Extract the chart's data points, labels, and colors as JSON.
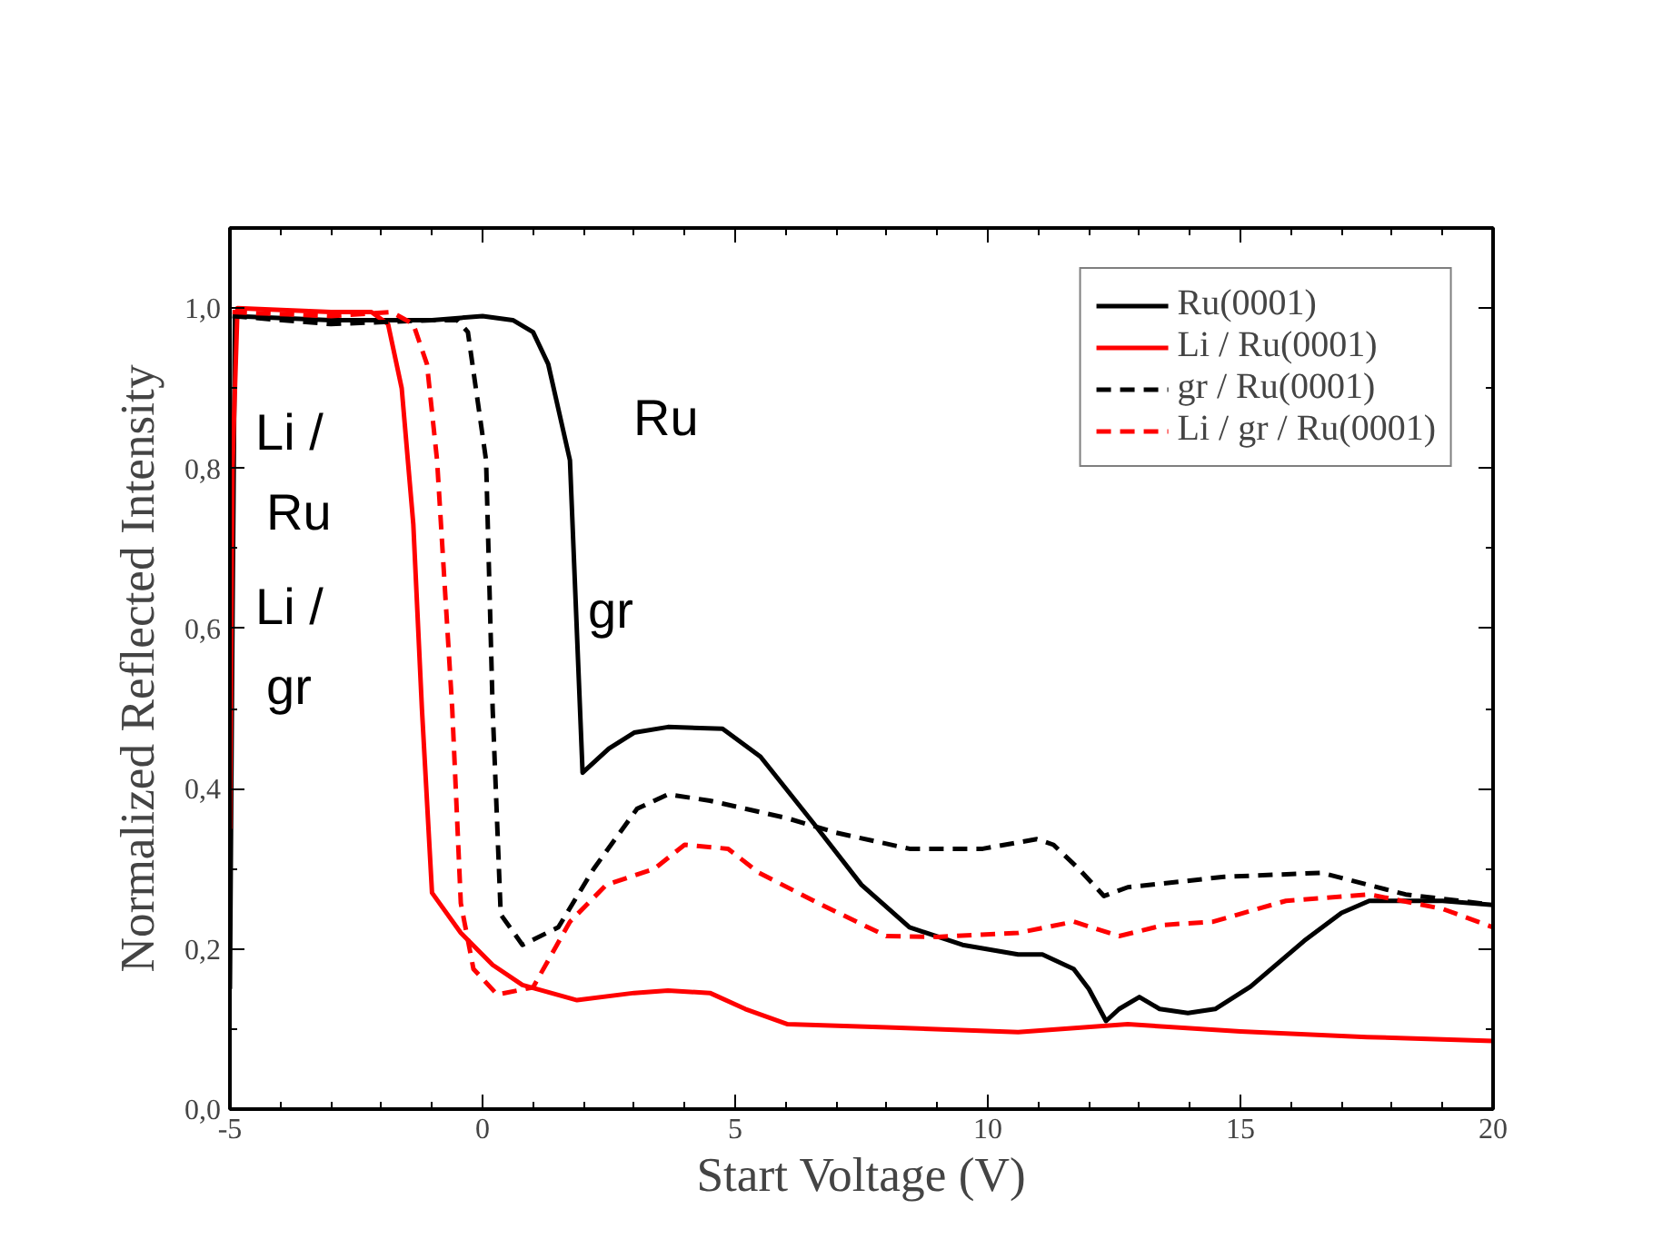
{
  "chart_data": {
    "type": "line",
    "xlabel": "Start Voltage (V)",
    "ylabel": "Normalized Reflected Intensity",
    "xlim": [
      -5,
      20
    ],
    "ylim": [
      0,
      1.1
    ],
    "xticks": [
      -5,
      0,
      5,
      10,
      15,
      20
    ],
    "yticks": [
      {
        "value": 0,
        "label": "0,0"
      },
      {
        "value": 0.2,
        "label": "0,2"
      },
      {
        "value": 0.4,
        "label": "0,4"
      },
      {
        "value": 0.6,
        "label": "0,6"
      },
      {
        "value": 0.8,
        "label": "0,8"
      },
      {
        "value": 1.0,
        "label": "1,0"
      }
    ],
    "grid": false,
    "legend": "top right",
    "marker": "none",
    "series": [
      {
        "name": "Ru(0001)",
        "color": "#000000",
        "line_style": "solid",
        "x": [
          -5,
          -4.95,
          -4.9,
          -3,
          -1,
          0,
          0.6,
          1.0,
          1.3,
          1.73,
          1.98,
          2.5,
          3.0,
          3.67,
          4.75,
          5.5,
          6.55,
          7.5,
          8.45,
          9.5,
          10.6,
          11.08,
          11.7,
          12.0,
          12.34,
          12.6,
          13.0,
          13.4,
          13.96,
          14.5,
          15.2,
          16.26,
          17.0,
          17.55,
          19.0,
          20
        ],
        "values": [
          0.15,
          0.6,
          0.99,
          0.985,
          0.985,
          0.99,
          0.985,
          0.97,
          0.93,
          0.81,
          0.42,
          0.45,
          0.47,
          0.477,
          0.475,
          0.44,
          0.357,
          0.28,
          0.227,
          0.205,
          0.193,
          0.193,
          0.175,
          0.15,
          0.11,
          0.125,
          0.14,
          0.125,
          0.12,
          0.125,
          0.153,
          0.21,
          0.245,
          0.26,
          0.26,
          0.255
        ]
      },
      {
        "name": "Li / Ru(0001)",
        "color": "#ff0000",
        "line_style": "solid",
        "x": [
          -5,
          -4.95,
          -4.85,
          -3,
          -2.2,
          -1.87,
          -1.6,
          -1.37,
          -1.2,
          -1.0,
          -0.43,
          0.2,
          0.79,
          1.87,
          3.0,
          3.67,
          4.5,
          5.2,
          6.04,
          8.0,
          10.6,
          12.77,
          15.0,
          17.5,
          20
        ],
        "values": [
          0.35,
          0.8,
          1.0,
          0.995,
          0.995,
          0.98,
          0.9,
          0.73,
          0.5,
          0.27,
          0.22,
          0.18,
          0.155,
          0.136,
          0.145,
          0.148,
          0.145,
          0.125,
          0.106,
          0.102,
          0.096,
          0.106,
          0.097,
          0.09,
          0.085
        ]
      },
      {
        "name": "gr / Ru(0001)",
        "color": "#000000",
        "line_style": "dashed",
        "x": [
          -4.95,
          -3,
          -1,
          -0.5,
          -0.29,
          0.07,
          0.2,
          0.36,
          0.79,
          1.5,
          2.2,
          3.06,
          3.67,
          4.5,
          6.04,
          7.0,
          8.45,
          9.9,
          10.97,
          11.3,
          11.8,
          12.3,
          12.77,
          14.68,
          16.6,
          18.27,
          20
        ],
        "values": [
          0.99,
          0.98,
          0.985,
          0.985,
          0.97,
          0.81,
          0.5,
          0.243,
          0.205,
          0.227,
          0.3,
          0.375,
          0.393,
          0.385,
          0.363,
          0.345,
          0.325,
          0.325,
          0.337,
          0.33,
          0.3,
          0.266,
          0.277,
          0.29,
          0.295,
          0.268,
          0.255
        ]
      },
      {
        "name": "Li / gr / Ru(0001)",
        "color": "#ff0000",
        "line_style": "dashed",
        "x": [
          -4.95,
          -3,
          -1.8,
          -1.37,
          -1.1,
          -0.9,
          -0.6,
          -0.43,
          -0.18,
          0.29,
          1.0,
          1.73,
          2.45,
          3.4,
          4.0,
          4.86,
          5.47,
          6.65,
          7.99,
          9.0,
          10.6,
          11.7,
          12.6,
          13.5,
          14.46,
          15.9,
          17.55,
          19.0,
          20
        ],
        "values": [
          0.995,
          0.99,
          0.995,
          0.98,
          0.93,
          0.81,
          0.5,
          0.257,
          0.175,
          0.143,
          0.152,
          0.234,
          0.28,
          0.3,
          0.33,
          0.325,
          0.295,
          0.257,
          0.216,
          0.215,
          0.22,
          0.234,
          0.216,
          0.23,
          0.234,
          0.26,
          0.268,
          0.25,
          0.227
        ]
      }
    ],
    "annotations": [
      "Li /\nRu",
      "Ru",
      "Li /\ngr",
      "gr"
    ]
  }
}
